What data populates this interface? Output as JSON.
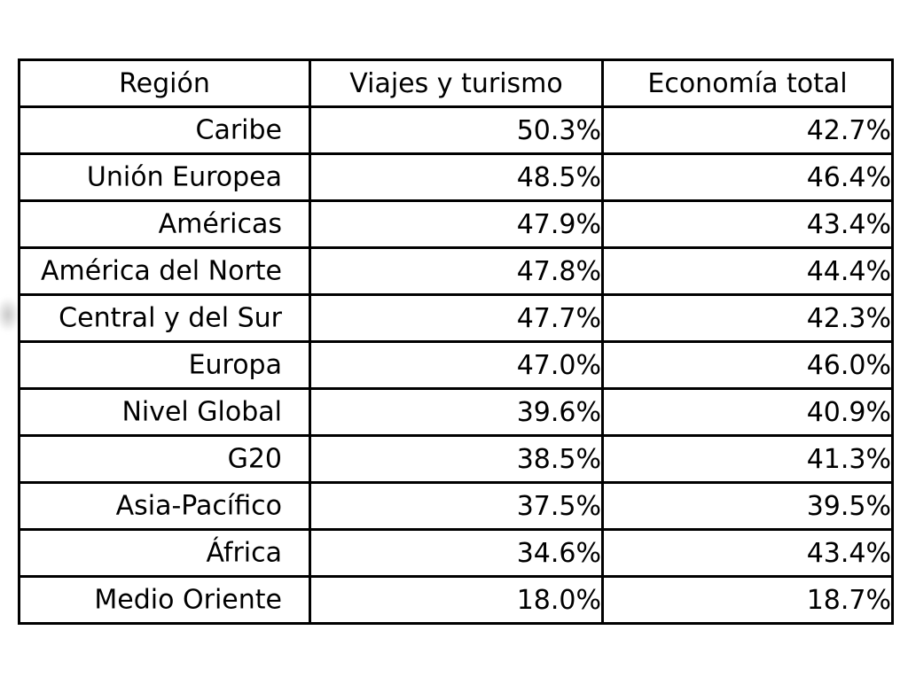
{
  "page": {
    "background_color": "#ffffff",
    "border_color": "#000000",
    "text_color": "#000000"
  },
  "chart_data": {
    "type": "table",
    "columns": [
      "Región",
      "Viajes y turismo",
      "Economía total"
    ],
    "rows": [
      [
        "Caribe",
        "50.3%",
        "42.7%"
      ],
      [
        "Unión Europea",
        "48.5%",
        "46.4%"
      ],
      [
        "Américas",
        "47.9%",
        "43.4%"
      ],
      [
        "América del Norte",
        "47.8%",
        "44.4%"
      ],
      [
        "Central y del Sur",
        "47.7%",
        "42.3%"
      ],
      [
        "Europa",
        "47.0%",
        "46.0%"
      ],
      [
        "Nivel Global",
        "39.6%",
        "40.9%"
      ],
      [
        "G20",
        "38.5%",
        "41.3%"
      ],
      [
        "Asia-Pacífico",
        "37.5%",
        "39.5%"
      ],
      [
        "África",
        "34.6%",
        "43.4%"
      ],
      [
        "Medio Oriente",
        "18.0%",
        "18.7%"
      ]
    ],
    "series": [
      {
        "name": "Viajes y turismo",
        "values": [
          50.3,
          48.5,
          47.9,
          47.8,
          47.7,
          47.0,
          39.6,
          38.5,
          37.5,
          34.6,
          18.0
        ]
      },
      {
        "name": "Economía total",
        "values": [
          42.7,
          46.4,
          43.4,
          44.4,
          42.3,
          46.0,
          40.9,
          41.3,
          39.5,
          43.4,
          18.7
        ]
      }
    ],
    "categories": [
      "Caribe",
      "Unión Europea",
      "Américas",
      "América del Norte",
      "Central y del Sur",
      "Europa",
      "Nivel Global",
      "G20",
      "Asia-Pacífico",
      "África",
      "Medio Oriente"
    ],
    "title": "",
    "grid": true,
    "value_unit": "%"
  }
}
